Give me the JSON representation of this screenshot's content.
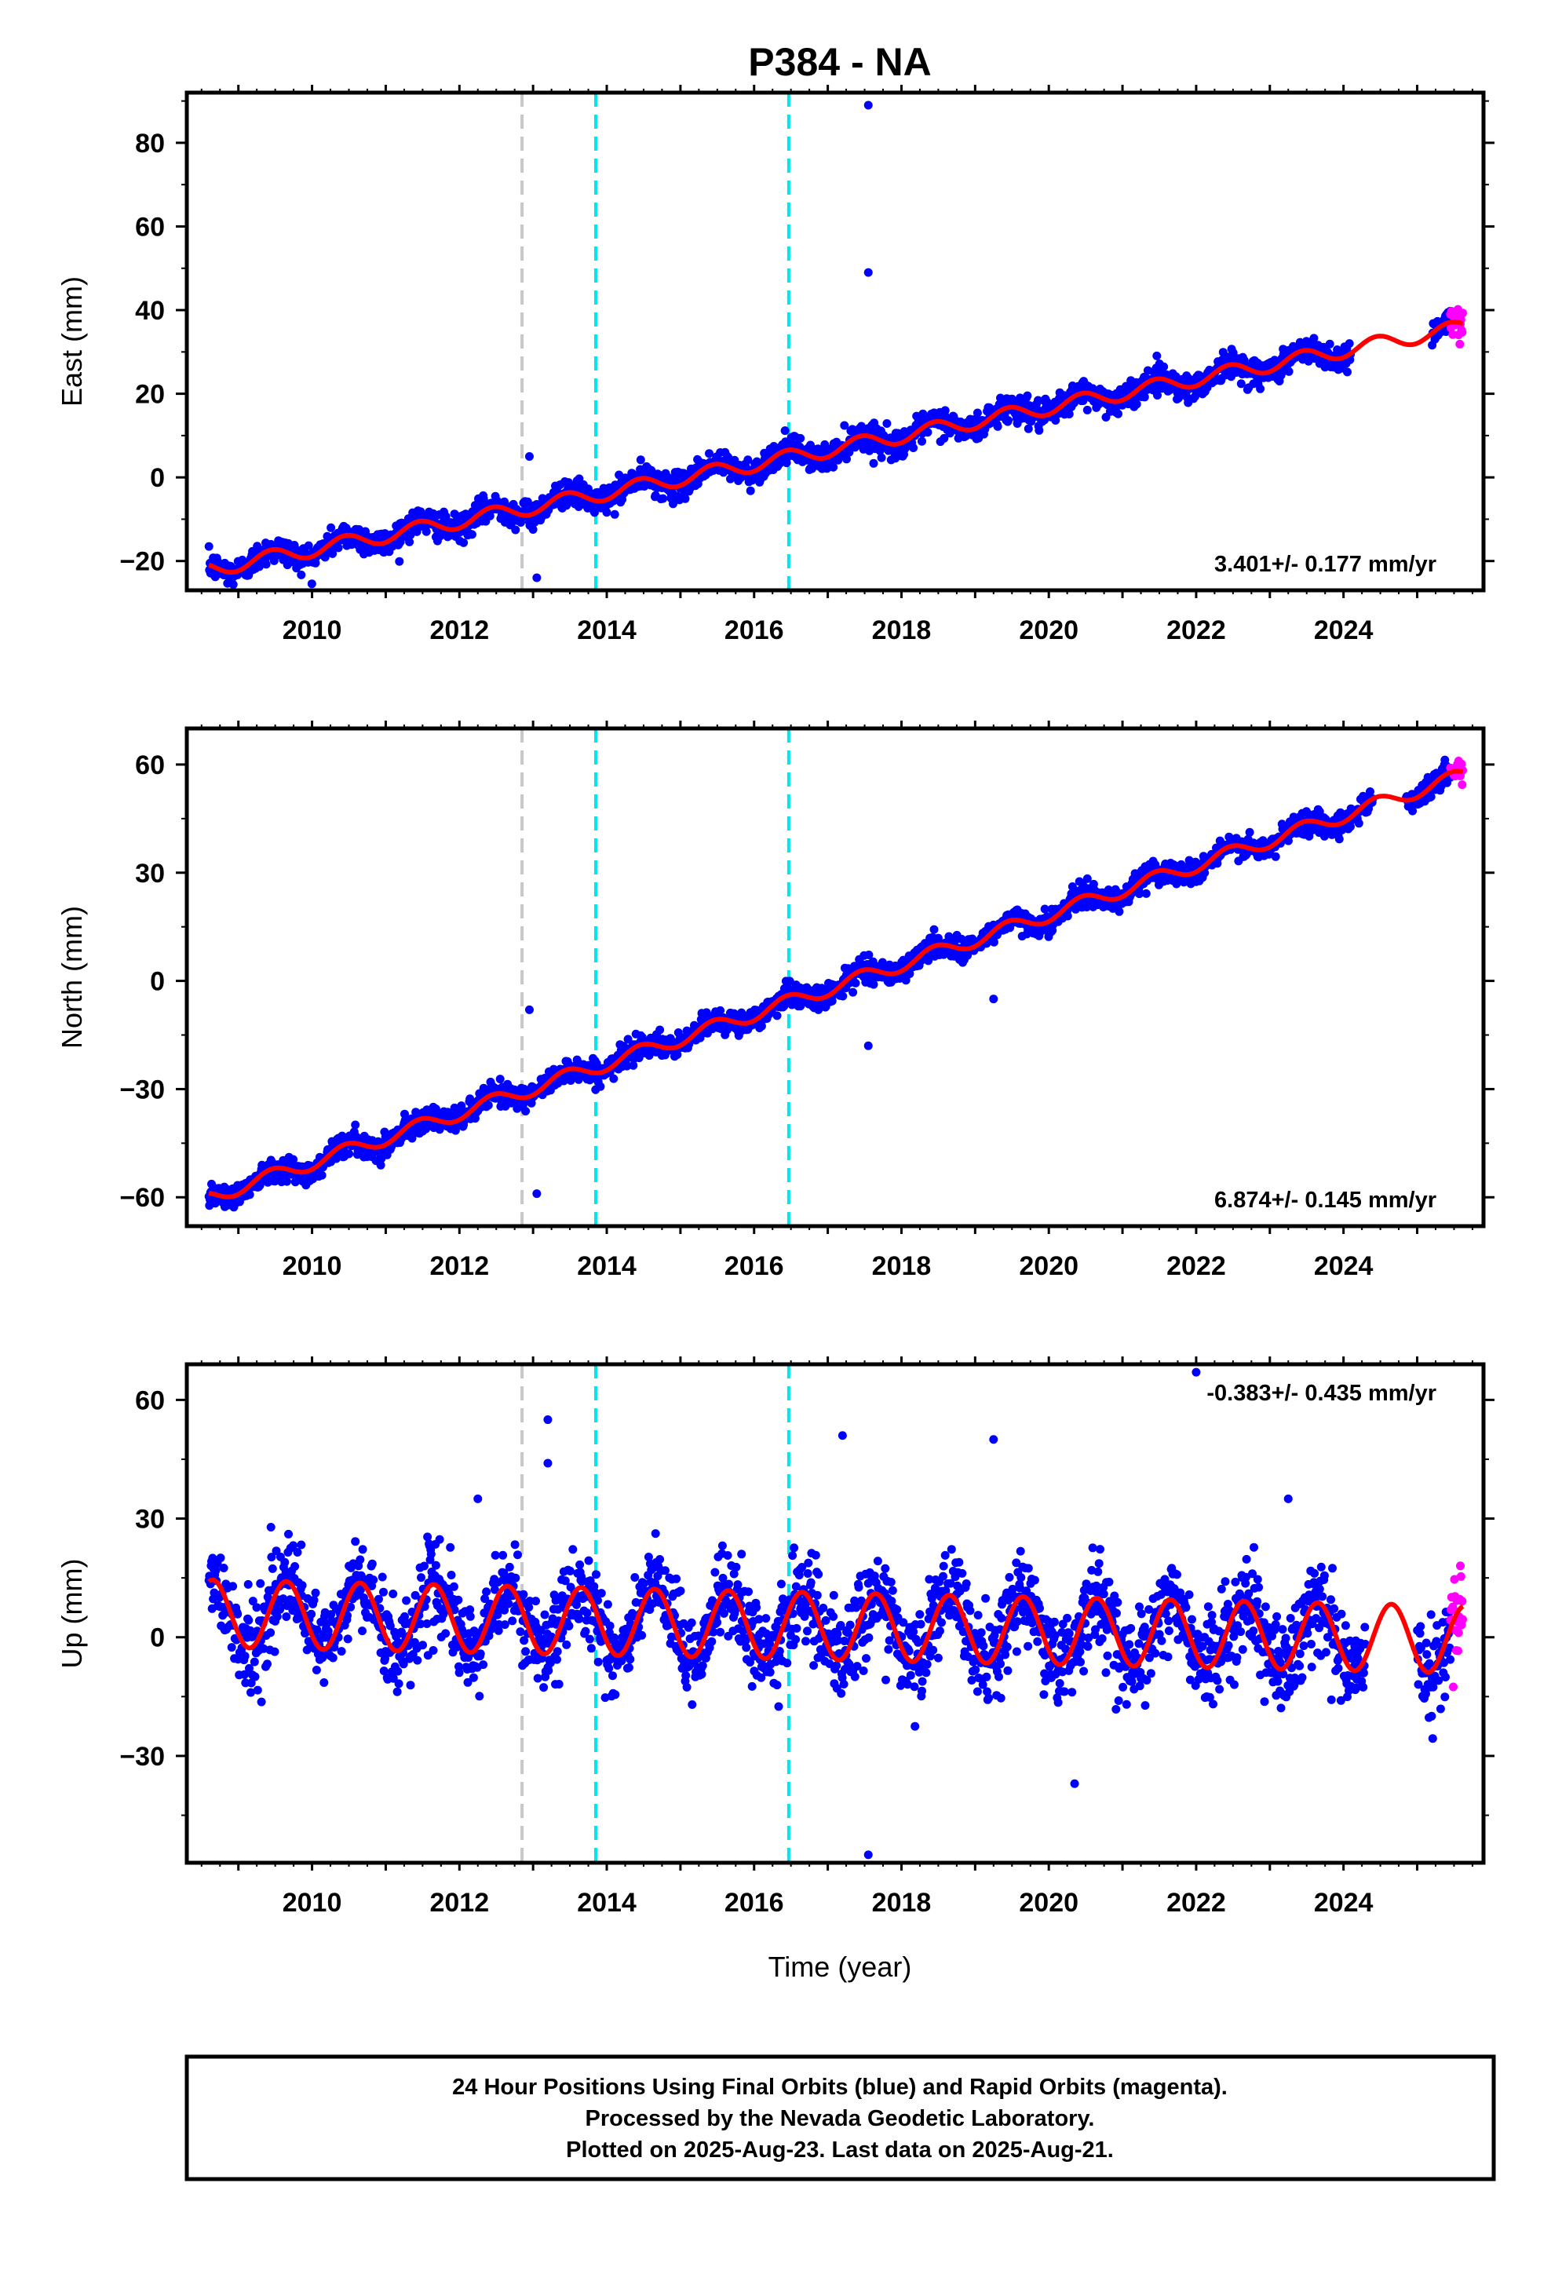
{
  "title": "P384 - NA",
  "colors": {
    "final_orbits": "#0000ff",
    "rapid_orbits": "#ff00ff",
    "model": "#ff0000",
    "event_gray": "#c8c8c8",
    "event_cyan": "#00e5ee"
  },
  "x_axis": {
    "label": "Time (year)",
    "range": [
      2008.3,
      2025.9
    ],
    "tick_labels": [
      "2010",
      "2012",
      "2014",
      "2016",
      "2018",
      "2020",
      "2022",
      "2024"
    ]
  },
  "event_lines": [
    {
      "year": 2012.85,
      "color": "gray"
    },
    {
      "year": 2013.85,
      "color": "cyan"
    },
    {
      "year": 2016.47,
      "color": "cyan"
    }
  ],
  "chart_data": [
    {
      "type": "scatter",
      "panel": "east",
      "ylabel": "East (mm)",
      "ylim": [
        -27,
        92
      ],
      "yticks": [
        -20,
        0,
        20,
        40,
        60,
        80
      ],
      "rate_text": "3.401+/- 0.177 mm/yr",
      "rate_position": "bottom-right",
      "model": {
        "start_year": 2008.6,
        "start_mm": -22,
        "rate_mm_per_yr": 3.401,
        "annual_amplitude_mm": 1.8,
        "annual_phase_year": 0.45
      },
      "final_orbit_span": [
        2008.6,
        2025.45
      ],
      "rapid_orbit_span": [
        2025.45,
        2025.62
      ],
      "data_gap": [
        2024.1,
        2025.2
      ],
      "outliers": [
        {
          "x": 2017.55,
          "y": 89
        },
        {
          "x": 2017.55,
          "y": 49
        },
        {
          "x": 2013.05,
          "y": -24
        },
        {
          "x": 2012.95,
          "y": 5
        }
      ]
    },
    {
      "type": "scatter",
      "panel": "north",
      "ylabel": "North (mm)",
      "ylim": [
        -68,
        70
      ],
      "yticks": [
        -60,
        -30,
        0,
        30,
        60
      ],
      "rate_text": "6.874+/- 0.145 mm/yr",
      "rate_position": "bottom-right",
      "model": {
        "start_year": 2008.6,
        "start_mm": -60,
        "rate_mm_per_yr": 6.874,
        "annual_amplitude_mm": 2.0,
        "annual_phase_year": 0.45
      },
      "final_orbit_span": [
        2008.6,
        2025.45
      ],
      "rapid_orbit_span": [
        2025.45,
        2025.62
      ],
      "data_gap": [
        2024.4,
        2024.85
      ],
      "outliers": [
        {
          "x": 2012.95,
          "y": -8
        },
        {
          "x": 2013.05,
          "y": -59
        },
        {
          "x": 2017.55,
          "y": -18
        },
        {
          "x": 2019.25,
          "y": -5
        }
      ]
    },
    {
      "type": "scatter",
      "panel": "up",
      "ylabel": "Up (mm)",
      "ylim": [
        -57,
        69
      ],
      "yticks": [
        -30,
        0,
        30,
        60
      ],
      "rate_text": "-0.383+/- 0.435 mm/yr",
      "rate_position": "top-right",
      "model": {
        "start_year": 2008.6,
        "start_mm": 6,
        "rate_mm_per_yr": -0.383,
        "annual_amplitude_mm": 8.5,
        "annual_phase_year": 0.65
      },
      "final_orbit_span": [
        2008.6,
        2025.45
      ],
      "rapid_orbit_span": [
        2025.45,
        2025.62
      ],
      "data_gap": [
        2024.3,
        2025.0
      ],
      "outliers": [
        {
          "x": 2013.2,
          "y": 55
        },
        {
          "x": 2013.2,
          "y": 44
        },
        {
          "x": 2017.2,
          "y": 51
        },
        {
          "x": 2019.25,
          "y": 50
        },
        {
          "x": 2017.55,
          "y": -55
        },
        {
          "x": 2020.35,
          "y": -37
        },
        {
          "x": 2022.0,
          "y": 67
        },
        {
          "x": 2023.25,
          "y": 35
        },
        {
          "x": 2012.25,
          "y": 35
        }
      ]
    }
  ],
  "footer": {
    "line1": "24 Hour Positions Using Final Orbits (blue) and Rapid Orbits (magenta).",
    "line2": "Processed by the Nevada Geodetic Laboratory.",
    "line3": "Plotted on 2025-Aug-23. Last data on 2025-Aug-21."
  }
}
